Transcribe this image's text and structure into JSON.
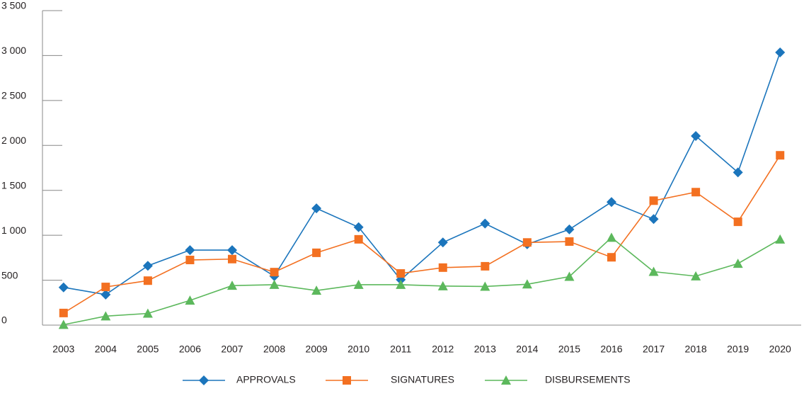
{
  "chart_data": {
    "type": "line",
    "categories": [
      "2003",
      "2004",
      "2005",
      "2006",
      "2007",
      "2008",
      "2009",
      "2010",
      "2011",
      "2012",
      "2013",
      "2014",
      "2015",
      "2016",
      "2017",
      "2018",
      "2019",
      "2020"
    ],
    "series": [
      {
        "name": "APPROVALS",
        "color": "#1b75bc",
        "marker": "diamond",
        "values": [
          420,
          340,
          660,
          835,
          835,
          545,
          1300,
          1090,
          505,
          920,
          1130,
          900,
          1065,
          1370,
          1180,
          2105,
          1700,
          3035
        ]
      },
      {
        "name": "SIGNATURES",
        "color": "#f37021",
        "marker": "square",
        "values": [
          135,
          425,
          495,
          725,
          735,
          590,
          805,
          955,
          575,
          640,
          655,
          920,
          930,
          755,
          1385,
          1480,
          1150,
          1890
        ]
      },
      {
        "name": "DISBURSEMENTS",
        "color": "#5cb85c",
        "marker": "triangle",
        "values": [
          5,
          100,
          130,
          275,
          440,
          450,
          385,
          450,
          450,
          435,
          430,
          455,
          540,
          975,
          595,
          545,
          685,
          955
        ]
      }
    ],
    "ylim": [
      0,
      3500
    ],
    "yticks": [
      0,
      500,
      {
        "value": 1000,
        "label": "1 000"
      },
      {
        "value": 1500,
        "label": "1 500"
      },
      {
        "value": 2000,
        "label": "2 000"
      },
      {
        "value": 2500,
        "label": "2 500"
      },
      {
        "value": 3000,
        "label": "3 000"
      },
      {
        "value": 3500,
        "label": "3 500"
      }
    ],
    "legend": "bottom"
  }
}
